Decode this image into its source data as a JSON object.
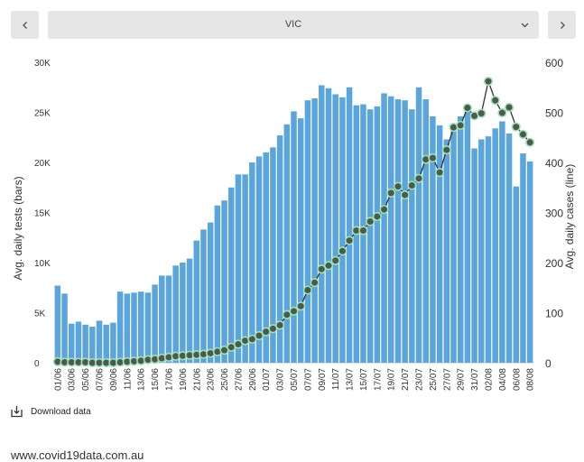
{
  "nav": {
    "region": "VIC",
    "prev_icon": "chevron-left-icon",
    "next_icon": "chevron-right-icon",
    "dropdown_icon": "chevron-down-icon"
  },
  "download": {
    "label": "Download data",
    "icon": "download-icon"
  },
  "footer": {
    "url": "www.covid19data.com.au"
  },
  "colors": {
    "bars": "#5aa5db",
    "line": "#333333",
    "points_fill": "#4c5a4c",
    "points_ring": "#9ee0b8"
  },
  "chart_data": {
    "type": "bar",
    "y_left": {
      "label": "Avg. daily tests (bars)",
      "range": [
        0,
        30000
      ],
      "ticks": [
        0,
        5000,
        10000,
        15000,
        20000,
        25000,
        30000
      ],
      "tick_labels": [
        "0",
        "5K",
        "10K",
        "15K",
        "20K",
        "25K",
        "30K"
      ]
    },
    "y_right": {
      "label": "Avg. daily cases (line)",
      "range": [
        0,
        600
      ],
      "ticks": [
        0,
        100,
        200,
        300,
        400,
        500,
        600
      ],
      "tick_labels": [
        "0",
        "100",
        "200",
        "300",
        "400",
        "500",
        "600"
      ]
    },
    "x_tick_labels": [
      "01/06",
      "03/06",
      "05/06",
      "07/06",
      "09/06",
      "11/06",
      "13/06",
      "15/06",
      "17/06",
      "19/06",
      "21/06",
      "23/06",
      "25/06",
      "27/06",
      "29/06",
      "01/07",
      "03/07",
      "05/07",
      "07/07",
      "09/07",
      "11/07",
      "13/07",
      "15/07",
      "17/07",
      "19/07",
      "21/07",
      "23/07",
      "25/07",
      "27/07",
      "29/07",
      "31/07",
      "02/08",
      "04/08",
      "06/08",
      "08/08"
    ],
    "categories": [
      "01/06",
      "02/06",
      "03/06",
      "04/06",
      "05/06",
      "06/06",
      "07/06",
      "08/06",
      "09/06",
      "10/06",
      "11/06",
      "12/06",
      "13/06",
      "14/06",
      "15/06",
      "16/06",
      "17/06",
      "18/06",
      "19/06",
      "20/06",
      "21/06",
      "22/06",
      "23/06",
      "24/06",
      "25/06",
      "26/06",
      "27/06",
      "28/06",
      "29/06",
      "30/06",
      "01/07",
      "02/07",
      "03/07",
      "04/07",
      "05/07",
      "06/07",
      "07/07",
      "08/07",
      "09/07",
      "10/07",
      "11/07",
      "12/07",
      "13/07",
      "14/07",
      "15/07",
      "16/07",
      "17/07",
      "18/07",
      "19/07",
      "20/07",
      "21/07",
      "22/07",
      "23/07",
      "24/07",
      "25/07",
      "26/07",
      "27/07",
      "28/07",
      "29/07",
      "30/07",
      "31/07",
      "01/08",
      "02/08",
      "03/08",
      "04/08",
      "05/08",
      "06/08",
      "07/08",
      "08/08"
    ],
    "series": [
      {
        "name": "Avg. daily tests",
        "values": [
          7700,
          6900,
          3900,
          4100,
          3800,
          3600,
          4200,
          3800,
          4000,
          7100,
          6900,
          7000,
          7100,
          7000,
          7800,
          8700,
          8700,
          9700,
          10000,
          10400,
          12200,
          13300,
          14000,
          15700,
          16200,
          17500,
          18800,
          18800,
          20000,
          20600,
          21000,
          21500,
          22700,
          23800,
          25100,
          24400,
          26200,
          26400,
          27700,
          27400,
          26800,
          26500,
          27500,
          25700,
          25800,
          25300,
          25600,
          26900,
          26600,
          26300,
          26200,
          25300,
          27500,
          26300,
          24600,
          23700,
          22300,
          23100,
          24600,
          25400,
          21400,
          22300,
          22600,
          23400,
          24100,
          22900,
          17600,
          20900,
          20100
        ]
      },
      {
        "name": "Avg. daily cases",
        "values": [
          2,
          1,
          1,
          1,
          1,
          0,
          0,
          0,
          0,
          1,
          2,
          3,
          4,
          6,
          7,
          9,
          11,
          13,
          14,
          15,
          16,
          17,
          19,
          22,
          25,
          31,
          37,
          44,
          47,
          54,
          62,
          68,
          75,
          96,
          103,
          113,
          145,
          160,
          187,
          194,
          204,
          223,
          244,
          264,
          264,
          282,
          292,
          306,
          339,
          352,
          335,
          354,
          368,
          406,
          409,
          380,
          425,
          470,
          474,
          509,
          493,
          498,
          562,
          524,
          499,
          510,
          471,
          456,
          440
        ]
      }
    ]
  }
}
